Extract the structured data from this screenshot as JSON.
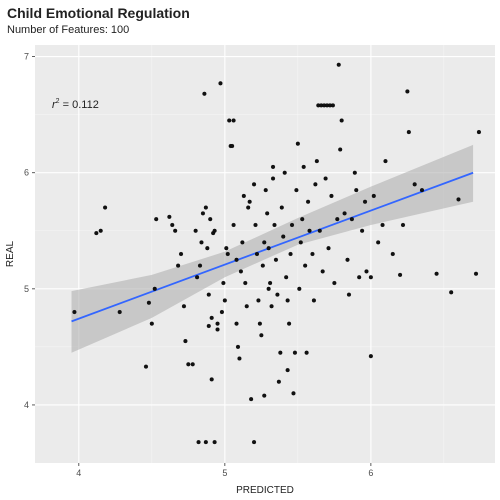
{
  "chart_data": {
    "type": "scatter",
    "title": "Child Emotional Regulation",
    "subtitle": "Number of Features: 100",
    "xlabel": "PREDICTED",
    "ylabel": "REAL",
    "xlim": [
      3.7,
      6.85
    ],
    "ylim": [
      3.5,
      7.1
    ],
    "xticks": [
      4,
      5,
      6
    ],
    "yticks": [
      4,
      5,
      6,
      7
    ],
    "grid": true,
    "annotation": {
      "prefix": "r",
      "superscript": "2",
      "text": " = 0.112"
    },
    "colors": {
      "panel": "#ebebeb",
      "grid": "#ffffff",
      "point": "#111111",
      "fit_line": "#3366ff",
      "band": "#b0b0b0"
    },
    "fit_line": {
      "x": [
        3.95,
        6.7
      ],
      "y": [
        4.72,
        6.0
      ]
    },
    "confidence_band": {
      "x": [
        3.95,
        4.5,
        5.0,
        5.5,
        6.0,
        6.7
      ],
      "lower": [
        4.45,
        4.75,
        5.1,
        5.38,
        5.55,
        5.75
      ],
      "upper": [
        4.98,
        5.12,
        5.32,
        5.61,
        5.88,
        6.24
      ]
    },
    "points": [
      {
        "x": 3.97,
        "y": 4.8
      },
      {
        "x": 4.12,
        "y": 5.48
      },
      {
        "x": 4.15,
        "y": 5.5
      },
      {
        "x": 4.18,
        "y": 5.7
      },
      {
        "x": 4.28,
        "y": 4.8
      },
      {
        "x": 4.48,
        "y": 4.88
      },
      {
        "x": 4.46,
        "y": 4.33
      },
      {
        "x": 4.5,
        "y": 4.7
      },
      {
        "x": 4.52,
        "y": 5.0
      },
      {
        "x": 4.53,
        "y": 5.6
      },
      {
        "x": 4.62,
        "y": 5.62
      },
      {
        "x": 4.64,
        "y": 5.55
      },
      {
        "x": 4.66,
        "y": 5.5
      },
      {
        "x": 4.68,
        "y": 5.2
      },
      {
        "x": 4.7,
        "y": 5.3
      },
      {
        "x": 4.72,
        "y": 4.85
      },
      {
        "x": 4.73,
        "y": 4.55
      },
      {
        "x": 4.75,
        "y": 4.35
      },
      {
        "x": 4.78,
        "y": 4.35
      },
      {
        "x": 4.8,
        "y": 5.5
      },
      {
        "x": 4.81,
        "y": 5.1
      },
      {
        "x": 4.83,
        "y": 5.2
      },
      {
        "x": 4.84,
        "y": 5.4
      },
      {
        "x": 4.85,
        "y": 5.65
      },
      {
        "x": 4.86,
        "y": 6.68
      },
      {
        "x": 4.87,
        "y": 5.7
      },
      {
        "x": 4.88,
        "y": 5.35
      },
      {
        "x": 4.89,
        "y": 4.95
      },
      {
        "x": 4.89,
        "y": 4.68
      },
      {
        "x": 4.9,
        "y": 5.6
      },
      {
        "x": 4.91,
        "y": 4.75
      },
      {
        "x": 4.91,
        "y": 4.22
      },
      {
        "x": 4.92,
        "y": 5.48
      },
      {
        "x": 4.93,
        "y": 5.5
      },
      {
        "x": 4.95,
        "y": 4.7
      },
      {
        "x": 4.95,
        "y": 4.65
      },
      {
        "x": 4.97,
        "y": 6.77
      },
      {
        "x": 4.98,
        "y": 4.8
      },
      {
        "x": 4.99,
        "y": 5.05
      },
      {
        "x": 5.0,
        "y": 4.9
      },
      {
        "x": 5.01,
        "y": 5.35
      },
      {
        "x": 5.02,
        "y": 5.3
      },
      {
        "x": 5.03,
        "y": 6.45
      },
      {
        "x": 5.04,
        "y": 6.23
      },
      {
        "x": 5.05,
        "y": 6.23
      },
      {
        "x": 5.06,
        "y": 6.45
      },
      {
        "x": 5.06,
        "y": 5.55
      },
      {
        "x": 5.08,
        "y": 5.25
      },
      {
        "x": 5.08,
        "y": 4.7
      },
      {
        "x": 5.09,
        "y": 4.5
      },
      {
        "x": 5.1,
        "y": 4.4
      },
      {
        "x": 5.11,
        "y": 5.15
      },
      {
        "x": 5.12,
        "y": 5.4
      },
      {
        "x": 5.13,
        "y": 5.8
      },
      {
        "x": 5.14,
        "y": 5.05
      },
      {
        "x": 5.15,
        "y": 4.85
      },
      {
        "x": 5.16,
        "y": 5.7
      },
      {
        "x": 5.17,
        "y": 5.75
      },
      {
        "x": 5.18,
        "y": 4.05
      },
      {
        "x": 5.2,
        "y": 3.68
      },
      {
        "x": 5.2,
        "y": 5.9
      },
      {
        "x": 5.21,
        "y": 5.55
      },
      {
        "x": 5.22,
        "y": 5.3
      },
      {
        "x": 5.23,
        "y": 4.9
      },
      {
        "x": 5.24,
        "y": 4.7
      },
      {
        "x": 5.25,
        "y": 4.6
      },
      {
        "x": 5.26,
        "y": 5.2
      },
      {
        "x": 5.27,
        "y": 5.4
      },
      {
        "x": 5.27,
        "y": 4.08
      },
      {
        "x": 5.28,
        "y": 5.85
      },
      {
        "x": 5.29,
        "y": 5.65
      },
      {
        "x": 5.3,
        "y": 5.35
      },
      {
        "x": 5.31,
        "y": 5.05
      },
      {
        "x": 5.32,
        "y": 4.85
      },
      {
        "x": 5.33,
        "y": 5.95
      },
      {
        "x": 5.33,
        "y": 6.05
      },
      {
        "x": 5.34,
        "y": 5.55
      },
      {
        "x": 5.35,
        "y": 5.25
      },
      {
        "x": 5.36,
        "y": 4.95
      },
      {
        "x": 5.37,
        "y": 4.2
      },
      {
        "x": 5.38,
        "y": 4.45
      },
      {
        "x": 5.39,
        "y": 5.7
      },
      {
        "x": 5.4,
        "y": 5.45
      },
      {
        "x": 5.41,
        "y": 6.0
      },
      {
        "x": 5.42,
        "y": 5.1
      },
      {
        "x": 5.43,
        "y": 4.9
      },
      {
        "x": 5.44,
        "y": 4.7
      },
      {
        "x": 5.45,
        "y": 5.3
      },
      {
        "x": 5.46,
        "y": 5.55
      },
      {
        "x": 5.47,
        "y": 4.1
      },
      {
        "x": 5.48,
        "y": 4.45
      },
      {
        "x": 5.49,
        "y": 5.85
      },
      {
        "x": 5.5,
        "y": 6.25
      },
      {
        "x": 5.51,
        "y": 5.0
      },
      {
        "x": 5.52,
        "y": 5.4
      },
      {
        "x": 5.53,
        "y": 5.6
      },
      {
        "x": 5.54,
        "y": 6.05
      },
      {
        "x": 5.55,
        "y": 5.2
      },
      {
        "x": 5.56,
        "y": 4.45
      },
      {
        "x": 5.57,
        "y": 5.75
      },
      {
        "x": 5.58,
        "y": 5.5
      },
      {
        "x": 5.6,
        "y": 5.3
      },
      {
        "x": 5.61,
        "y": 4.9
      },
      {
        "x": 5.62,
        "y": 5.9
      },
      {
        "x": 5.63,
        "y": 6.1
      },
      {
        "x": 5.64,
        "y": 6.58
      },
      {
        "x": 5.66,
        "y": 6.58
      },
      {
        "x": 5.68,
        "y": 6.58
      },
      {
        "x": 5.7,
        "y": 6.58
      },
      {
        "x": 5.72,
        "y": 6.58
      },
      {
        "x": 5.74,
        "y": 6.58
      },
      {
        "x": 5.65,
        "y": 5.5
      },
      {
        "x": 5.67,
        "y": 5.15
      },
      {
        "x": 5.69,
        "y": 5.95
      },
      {
        "x": 5.71,
        "y": 5.35
      },
      {
        "x": 5.73,
        "y": 5.8
      },
      {
        "x": 5.75,
        "y": 5.05
      },
      {
        "x": 5.77,
        "y": 5.6
      },
      {
        "x": 5.78,
        "y": 6.93
      },
      {
        "x": 5.79,
        "y": 6.2
      },
      {
        "x": 5.8,
        "y": 6.45
      },
      {
        "x": 5.82,
        "y": 5.65
      },
      {
        "x": 5.84,
        "y": 5.25
      },
      {
        "x": 5.85,
        "y": 4.95
      },
      {
        "x": 5.87,
        "y": 5.6
      },
      {
        "x": 5.89,
        "y": 6.0
      },
      {
        "x": 5.9,
        "y": 5.85
      },
      {
        "x": 5.92,
        "y": 5.1
      },
      {
        "x": 5.94,
        "y": 5.5
      },
      {
        "x": 5.96,
        "y": 5.75
      },
      {
        "x": 5.97,
        "y": 5.15
      },
      {
        "x": 6.0,
        "y": 4.42
      },
      {
        "x": 6.0,
        "y": 5.1
      },
      {
        "x": 6.02,
        "y": 5.8
      },
      {
        "x": 6.05,
        "y": 5.4
      },
      {
        "x": 6.08,
        "y": 5.55
      },
      {
        "x": 6.1,
        "y": 6.1
      },
      {
        "x": 6.15,
        "y": 5.3
      },
      {
        "x": 6.2,
        "y": 5.12
      },
      {
        "x": 6.22,
        "y": 5.55
      },
      {
        "x": 6.25,
        "y": 6.7
      },
      {
        "x": 6.26,
        "y": 6.35
      },
      {
        "x": 6.3,
        "y": 5.9
      },
      {
        "x": 6.35,
        "y": 5.85
      },
      {
        "x": 6.45,
        "y": 5.13
      },
      {
        "x": 6.55,
        "y": 4.97
      },
      {
        "x": 6.6,
        "y": 5.77
      },
      {
        "x": 6.72,
        "y": 5.13
      },
      {
        "x": 6.74,
        "y": 6.35
      },
      {
        "x": 4.82,
        "y": 3.68
      },
      {
        "x": 4.87,
        "y": 3.68
      },
      {
        "x": 4.93,
        "y": 3.68
      },
      {
        "x": 5.43,
        "y": 4.3
      },
      {
        "x": 5.3,
        "y": 5.0
      }
    ]
  }
}
